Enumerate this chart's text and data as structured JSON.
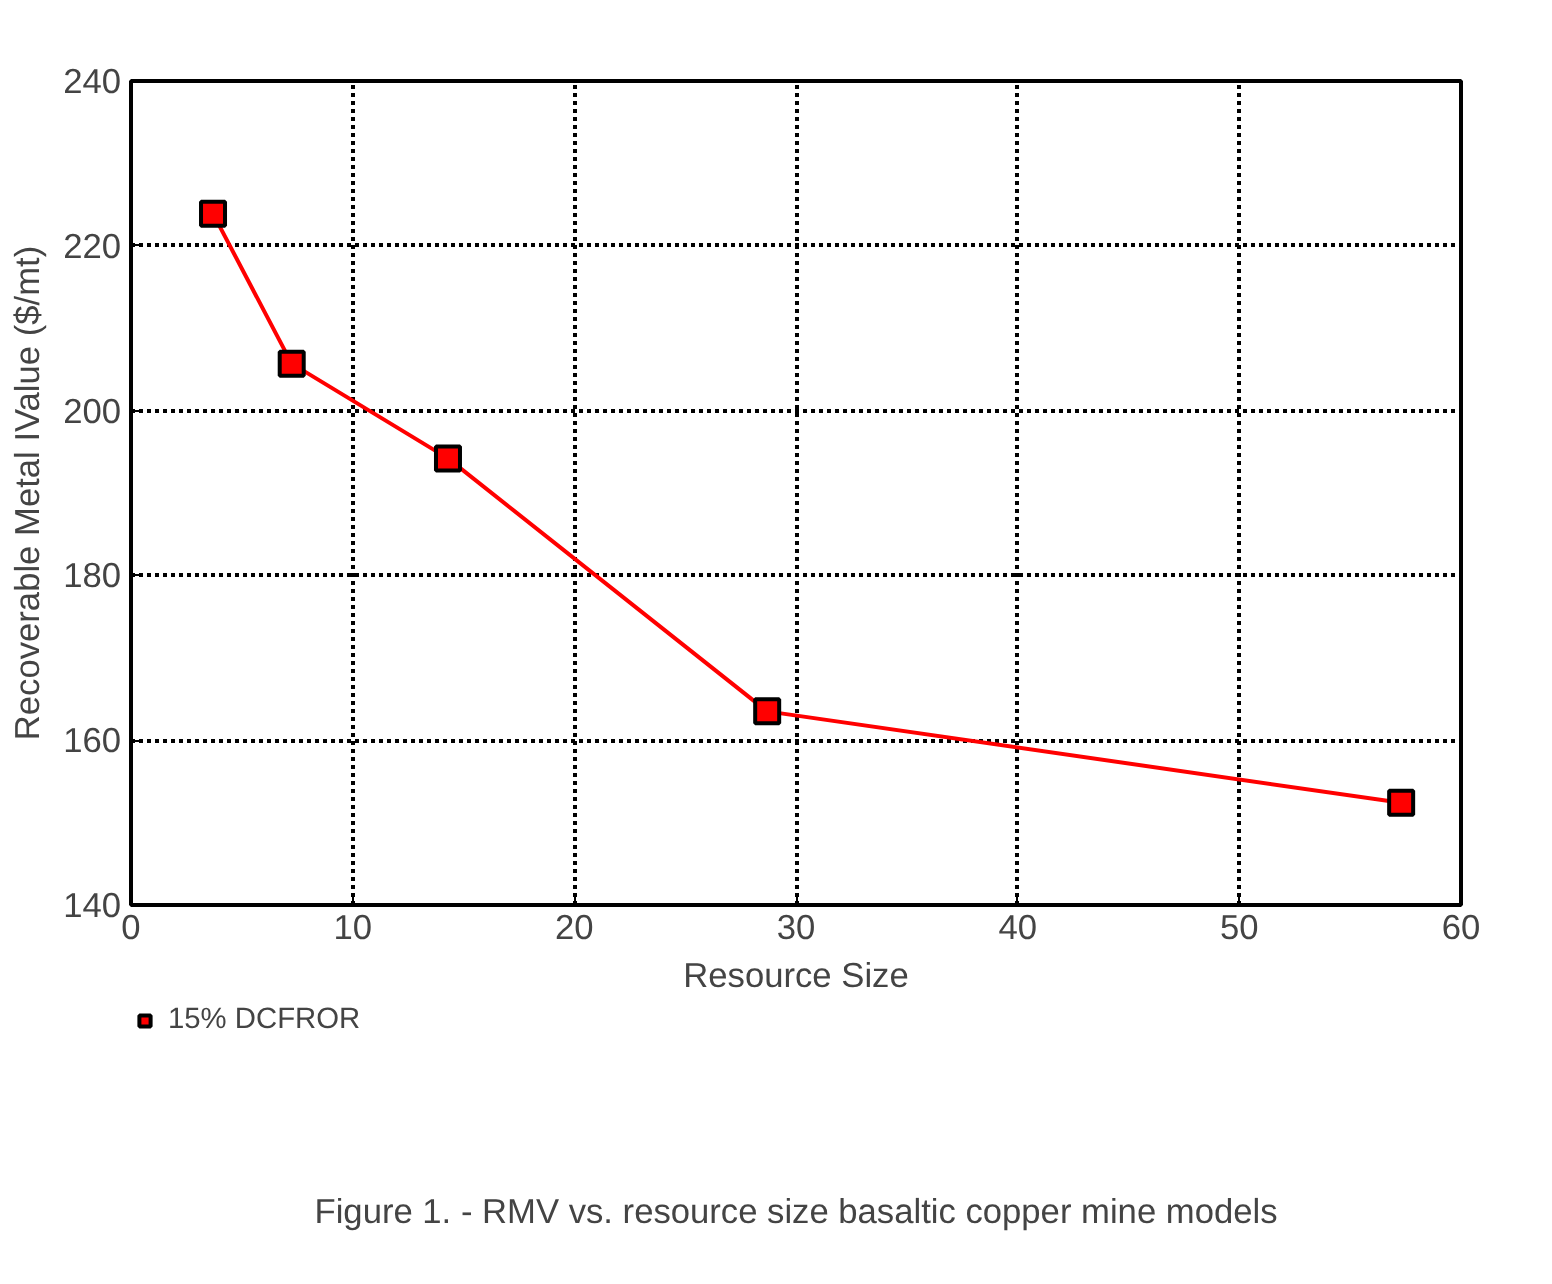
{
  "chart_data": {
    "type": "line",
    "xlabel": "Resource Size",
    "ylabel": "Recoverable Metal IValue ($/mt)",
    "x": [
      3.7,
      7.25,
      14.3,
      28.7,
      57.3
    ],
    "series": [
      {
        "name": "15% DCFROR",
        "color": "#ff0000",
        "values": [
          223.9,
          205.7,
          194.2,
          163.5,
          152.4
        ]
      }
    ],
    "xlim": [
      0,
      60
    ],
    "xticks": [
      0,
      10,
      20,
      30,
      40,
      50,
      60
    ],
    "ylim": [
      140,
      240
    ],
    "yticks": [
      140,
      160,
      180,
      200,
      220,
      240
    ],
    "grid": true,
    "marker": "square",
    "line_style": "solid",
    "legend": "bottom left",
    "annotations": [
      "Figure 1. - RMV vs. resource size basaltic copper mine models"
    ]
  }
}
